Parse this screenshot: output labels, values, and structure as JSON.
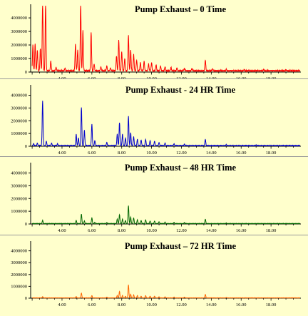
{
  "figure": {
    "background": "#ffffcc"
  },
  "chart_data": [
    {
      "type": "line",
      "title": "Pump Exhaust – 0 Time",
      "color": "#ff0000",
      "x_ticks": [
        "4.00",
        "6.00",
        "8.00",
        "10.00",
        "12.00",
        "14.00",
        "16.00",
        "18.00"
      ],
      "y_ticks": [
        "0",
        "1000000",
        "2000000",
        "3000000",
        "4000000"
      ],
      "xlim": [
        1.9,
        20.0
      ],
      "ylim": [
        0,
        4900000
      ],
      "baseline": 60000,
      "peaks": [
        {
          "rt": 2.05,
          "h": 1900000
        },
        {
          "rt": 2.2,
          "h": 2000000
        },
        {
          "rt": 2.35,
          "h": 1500000
        },
        {
          "rt": 2.55,
          "h": 1650000
        },
        {
          "rt": 2.7,
          "h": 5000000
        },
        {
          "rt": 2.9,
          "h": 5000000
        },
        {
          "rt": 3.25,
          "h": 700000
        },
        {
          "rt": 3.6,
          "h": 250000
        },
        {
          "rt": 4.2,
          "h": 200000
        },
        {
          "rt": 4.9,
          "h": 1950000
        },
        {
          "rt": 5.05,
          "h": 1500000
        },
        {
          "rt": 5.25,
          "h": 5000000
        },
        {
          "rt": 5.4,
          "h": 3000000
        },
        {
          "rt": 5.95,
          "h": 2800000
        },
        {
          "rt": 6.15,
          "h": 500000
        },
        {
          "rt": 6.6,
          "h": 300000
        },
        {
          "rt": 7.0,
          "h": 350000
        },
        {
          "rt": 7.25,
          "h": 200000
        },
        {
          "rt": 7.65,
          "h": 1100000
        },
        {
          "rt": 7.8,
          "h": 2300000
        },
        {
          "rt": 8.0,
          "h": 1400000
        },
        {
          "rt": 8.2,
          "h": 900000
        },
        {
          "rt": 8.45,
          "h": 2600000
        },
        {
          "rt": 8.6,
          "h": 1500000
        },
        {
          "rt": 8.8,
          "h": 1200000
        },
        {
          "rt": 9.0,
          "h": 800000
        },
        {
          "rt": 9.25,
          "h": 600000
        },
        {
          "rt": 9.5,
          "h": 700000
        },
        {
          "rt": 9.8,
          "h": 500000
        },
        {
          "rt": 10.0,
          "h": 600000
        },
        {
          "rt": 10.3,
          "h": 450000
        },
        {
          "rt": 10.6,
          "h": 350000
        },
        {
          "rt": 10.9,
          "h": 300000
        },
        {
          "rt": 11.3,
          "h": 250000
        },
        {
          "rt": 11.7,
          "h": 220000
        },
        {
          "rt": 12.2,
          "h": 160000
        },
        {
          "rt": 12.7,
          "h": 150000
        },
        {
          "rt": 13.6,
          "h": 800000
        },
        {
          "rt": 14.1,
          "h": 130000
        },
        {
          "rt": 15.0,
          "h": 100000
        },
        {
          "rt": 16.2,
          "h": 80000
        },
        {
          "rt": 17.5,
          "h": 70000
        },
        {
          "rt": 19.0,
          "h": 60000
        }
      ]
    },
    {
      "type": "line",
      "title": "Pump Exhaust - 24 HR Time",
      "color": "#0000cc",
      "x_ticks": [
        "4.00",
        "6.00",
        "8.00",
        "10.00",
        "12.00",
        "14.00",
        "16.00",
        "18.00"
      ],
      "y_ticks": [
        "0",
        "1000000",
        "2000000",
        "3000000",
        "4000000"
      ],
      "xlim": [
        1.9,
        20.0
      ],
      "ylim": [
        0,
        4700000
      ],
      "baseline": 30000,
      "peaks": [
        {
          "rt": 2.1,
          "h": 150000
        },
        {
          "rt": 2.35,
          "h": 200000
        },
        {
          "rt": 2.7,
          "h": 3500000
        },
        {
          "rt": 2.95,
          "h": 350000
        },
        {
          "rt": 3.3,
          "h": 200000
        },
        {
          "rt": 3.7,
          "h": 150000
        },
        {
          "rt": 4.95,
          "h": 900000
        },
        {
          "rt": 5.1,
          "h": 600000
        },
        {
          "rt": 5.3,
          "h": 3000000
        },
        {
          "rt": 5.5,
          "h": 1200000
        },
        {
          "rt": 6.0,
          "h": 1700000
        },
        {
          "rt": 6.2,
          "h": 400000
        },
        {
          "rt": 7.0,
          "h": 250000
        },
        {
          "rt": 7.7,
          "h": 900000
        },
        {
          "rt": 7.85,
          "h": 1800000
        },
        {
          "rt": 8.05,
          "h": 900000
        },
        {
          "rt": 8.25,
          "h": 600000
        },
        {
          "rt": 8.45,
          "h": 2300000
        },
        {
          "rt": 8.6,
          "h": 1000000
        },
        {
          "rt": 8.8,
          "h": 700000
        },
        {
          "rt": 9.05,
          "h": 500000
        },
        {
          "rt": 9.3,
          "h": 450000
        },
        {
          "rt": 9.6,
          "h": 500000
        },
        {
          "rt": 9.9,
          "h": 400000
        },
        {
          "rt": 10.2,
          "h": 350000
        },
        {
          "rt": 10.5,
          "h": 250000
        },
        {
          "rt": 10.9,
          "h": 200000
        },
        {
          "rt": 11.5,
          "h": 150000
        },
        {
          "rt": 12.2,
          "h": 120000
        },
        {
          "rt": 13.6,
          "h": 500000
        },
        {
          "rt": 15.0,
          "h": 80000
        },
        {
          "rt": 17.0,
          "h": 60000
        }
      ]
    },
    {
      "type": "line",
      "title": "Pump Exhaust – 48 HR Time",
      "color": "#006600",
      "x_ticks": [
        "4.00",
        "6.00",
        "8.00",
        "10.00",
        "12.00",
        "14.00",
        "16.00",
        "18.00"
      ],
      "y_ticks": [
        "0",
        "1000000",
        "2000000",
        "3000000",
        "4000000"
      ],
      "xlim": [
        1.9,
        20.0
      ],
      "ylim": [
        0,
        4700000
      ],
      "baseline": 20000,
      "peaks": [
        {
          "rt": 2.7,
          "h": 250000
        },
        {
          "rt": 4.95,
          "h": 250000
        },
        {
          "rt": 5.3,
          "h": 750000
        },
        {
          "rt": 5.5,
          "h": 200000
        },
        {
          "rt": 6.0,
          "h": 450000
        },
        {
          "rt": 6.2,
          "h": 100000
        },
        {
          "rt": 7.0,
          "h": 80000
        },
        {
          "rt": 7.7,
          "h": 350000
        },
        {
          "rt": 7.85,
          "h": 700000
        },
        {
          "rt": 8.05,
          "h": 350000
        },
        {
          "rt": 8.25,
          "h": 250000
        },
        {
          "rt": 8.45,
          "h": 1400000
        },
        {
          "rt": 8.6,
          "h": 500000
        },
        {
          "rt": 8.8,
          "h": 450000
        },
        {
          "rt": 9.05,
          "h": 300000
        },
        {
          "rt": 9.3,
          "h": 250000
        },
        {
          "rt": 9.6,
          "h": 300000
        },
        {
          "rt": 9.9,
          "h": 200000
        },
        {
          "rt": 10.2,
          "h": 200000
        },
        {
          "rt": 10.5,
          "h": 150000
        },
        {
          "rt": 10.9,
          "h": 120000
        },
        {
          "rt": 11.5,
          "h": 100000
        },
        {
          "rt": 12.2,
          "h": 80000
        },
        {
          "rt": 13.6,
          "h": 350000
        },
        {
          "rt": 15.0,
          "h": 40000
        }
      ]
    },
    {
      "type": "line",
      "title": "Pump Exhaust – 72 HR Time",
      "color": "#ff6600",
      "x_ticks": [
        "4.00",
        "6.00",
        "8.00",
        "10.00",
        "12.00",
        "14.00",
        "16.00",
        "18.00"
      ],
      "y_ticks": [
        "0",
        "1000000",
        "2000000",
        "3000000",
        "4000000"
      ],
      "xlim": [
        1.9,
        20.0
      ],
      "ylim": [
        0,
        4700000
      ],
      "baseline": 15000,
      "peaks": [
        {
          "rt": 2.7,
          "h": 100000
        },
        {
          "rt": 4.95,
          "h": 120000
        },
        {
          "rt": 5.3,
          "h": 400000
        },
        {
          "rt": 6.0,
          "h": 200000
        },
        {
          "rt": 7.0,
          "h": 60000
        },
        {
          "rt": 7.7,
          "h": 200000
        },
        {
          "rt": 7.85,
          "h": 550000
        },
        {
          "rt": 8.05,
          "h": 200000
        },
        {
          "rt": 8.25,
          "h": 150000
        },
        {
          "rt": 8.45,
          "h": 1100000
        },
        {
          "rt": 8.6,
          "h": 300000
        },
        {
          "rt": 8.8,
          "h": 250000
        },
        {
          "rt": 9.05,
          "h": 200000
        },
        {
          "rt": 9.3,
          "h": 150000
        },
        {
          "rt": 9.6,
          "h": 200000
        },
        {
          "rt": 9.9,
          "h": 150000
        },
        {
          "rt": 10.2,
          "h": 150000
        },
        {
          "rt": 10.5,
          "h": 100000
        },
        {
          "rt": 10.9,
          "h": 90000
        },
        {
          "rt": 11.5,
          "h": 70000
        },
        {
          "rt": 12.2,
          "h": 60000
        },
        {
          "rt": 13.6,
          "h": 300000
        },
        {
          "rt": 15.0,
          "h": 30000
        }
      ]
    }
  ]
}
